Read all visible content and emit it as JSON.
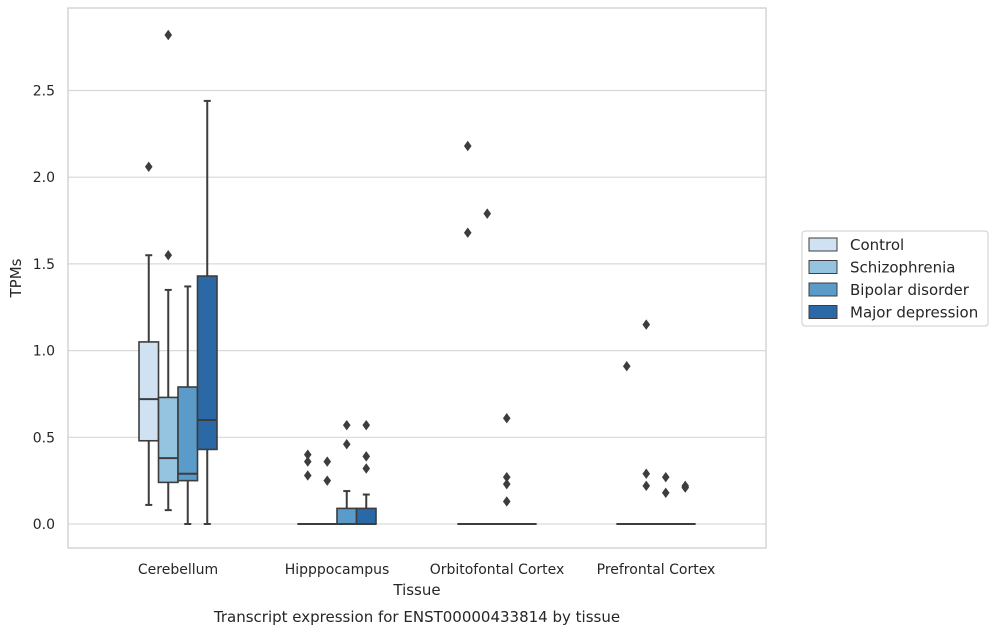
{
  "chart_data": {
    "type": "box",
    "xlabel": "Tissue",
    "ylabel": "TPMs",
    "caption": "Transcript expression for ENST00000433814 by tissue",
    "ylim": [
      -0.14,
      2.96
    ],
    "yticks": [
      "0.0",
      "0.5",
      "1.0",
      "1.5",
      "2.0",
      "2.5"
    ],
    "ytick_values": [
      0.0,
      0.5,
      1.0,
      1.5,
      2.0,
      2.5
    ],
    "grid": "horizontal",
    "legend_position": "right",
    "categories": [
      "Cerebellum",
      "Hipppocampus",
      "Orbitofontal Cortex",
      "Prefrontal Cortex"
    ],
    "series": [
      {
        "name": "Control",
        "color": "#d0e1f2",
        "boxes": [
          {
            "whislo": 0.11,
            "q1": 0.48,
            "med": 0.72,
            "q3": 1.05,
            "whishi": 1.55,
            "fliers": [
              2.06
            ]
          },
          {
            "whislo": 0.0,
            "q1": 0.0,
            "med": 0.0,
            "q3": 0.0,
            "whishi": 0.0,
            "fliers": [
              0.28,
              0.36,
              0.4
            ]
          },
          {
            "whislo": 0.0,
            "q1": 0.0,
            "med": 0.0,
            "q3": 0.0,
            "whishi": 0.0,
            "fliers": [
              1.68,
              2.18
            ]
          },
          {
            "whislo": 0.0,
            "q1": 0.0,
            "med": 0.0,
            "q3": 0.0,
            "whishi": 0.0,
            "fliers": [
              0.91
            ]
          }
        ]
      },
      {
        "name": "Schizophrenia",
        "color": "#94c4df",
        "boxes": [
          {
            "whislo": 0.08,
            "q1": 0.24,
            "med": 0.38,
            "q3": 0.73,
            "whishi": 1.35,
            "fliers": [
              1.55,
              2.82
            ]
          },
          {
            "whislo": 0.0,
            "q1": 0.0,
            "med": 0.0,
            "q3": 0.0,
            "whishi": 0.0,
            "fliers": [
              0.25,
              0.36
            ]
          },
          {
            "whislo": 0.0,
            "q1": 0.0,
            "med": 0.0,
            "q3": 0.0,
            "whishi": 0.0,
            "fliers": [
              1.79
            ]
          },
          {
            "whislo": 0.0,
            "q1": 0.0,
            "med": 0.0,
            "q3": 0.0,
            "whishi": 0.0,
            "fliers": [
              0.22,
              0.29,
              1.15
            ]
          }
        ]
      },
      {
        "name": "Bipolar disorder",
        "color": "#5a9bc9",
        "boxes": [
          {
            "whislo": 0.0,
            "q1": 0.25,
            "med": 0.29,
            "q3": 0.79,
            "whishi": 1.37,
            "fliers": []
          },
          {
            "whislo": 0.0,
            "q1": 0.0,
            "med": 0.0,
            "q3": 0.09,
            "whishi": 0.19,
            "fliers": [
              0.46,
              0.57
            ]
          },
          {
            "whislo": 0.0,
            "q1": 0.0,
            "med": 0.0,
            "q3": 0.0,
            "whishi": 0.0,
            "fliers": [
              0.13,
              0.23,
              0.27,
              0.61
            ]
          },
          {
            "whislo": 0.0,
            "q1": 0.0,
            "med": 0.0,
            "q3": 0.0,
            "whishi": 0.0,
            "fliers": [
              0.18,
              0.27
            ]
          }
        ]
      },
      {
        "name": "Major depression",
        "color": "#2a69a6",
        "boxes": [
          {
            "whislo": 0.0,
            "q1": 0.43,
            "med": 0.6,
            "q3": 1.43,
            "whishi": 2.44,
            "fliers": []
          },
          {
            "whislo": 0.0,
            "q1": 0.0,
            "med": 0.0,
            "q3": 0.09,
            "whishi": 0.17,
            "fliers": [
              0.32,
              0.39,
              0.57
            ]
          },
          {
            "whislo": 0.0,
            "q1": 0.0,
            "med": 0.0,
            "q3": 0.0,
            "whishi": 0.0,
            "fliers": []
          },
          {
            "whislo": 0.0,
            "q1": 0.0,
            "med": 0.0,
            "q3": 0.0,
            "whishi": 0.0,
            "fliers": [
              0.21,
              0.22
            ]
          }
        ]
      }
    ]
  }
}
